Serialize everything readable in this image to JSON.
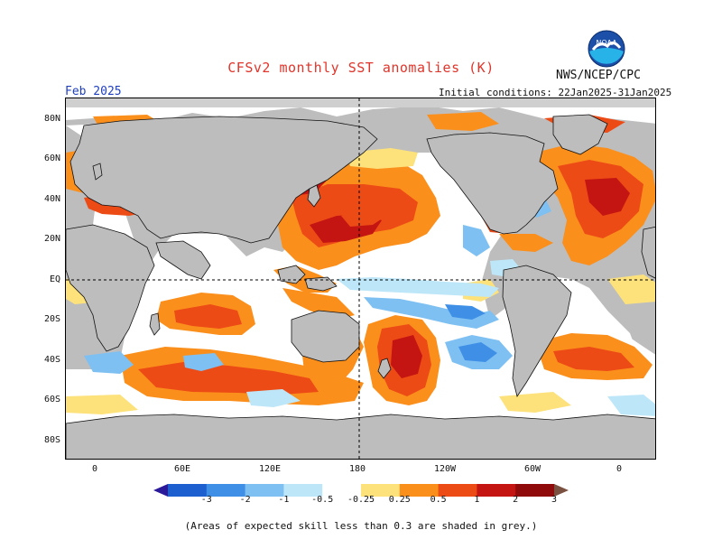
{
  "title": "CFSv2 monthly SST anomalies (K)",
  "agency": "NWS/NCEP/CPC",
  "valid_month": "Feb 2025",
  "initial_conditions": "Initial conditions: 22Jan2025-31Jan2025",
  "logo_text": "NOAA",
  "footnote": "(Areas of expected skill less than 0.3 are shaded in grey.)",
  "lat_labels": [
    "80N",
    "60N",
    "40N",
    "20N",
    "EQ",
    "20S",
    "40S",
    "60S",
    "80S"
  ],
  "lon_labels": [
    "0",
    "60E",
    "120E",
    "180",
    "120W",
    "60W",
    "0"
  ],
  "colorbar": {
    "labels": [
      "-3",
      "-2",
      "-1",
      "-0.5",
      "-0.25",
      "0.25",
      "0.5",
      "1",
      "2",
      "3"
    ],
    "colors": [
      "#2a1a9a",
      "#1e5fd0",
      "#3f8fe6",
      "#7ec0f2",
      "#bde7f8",
      "#ffffff",
      "#fde27c",
      "#fb8f1c",
      "#ed4b16",
      "#c41512",
      "#8f0a0a",
      "#7a5040"
    ]
  },
  "map_colors": {
    "land": "#bdbdbd",
    "ocean_neutral": "#ffffff",
    "grey_skill": "#cfcfcf",
    "coast": "#111111"
  }
}
